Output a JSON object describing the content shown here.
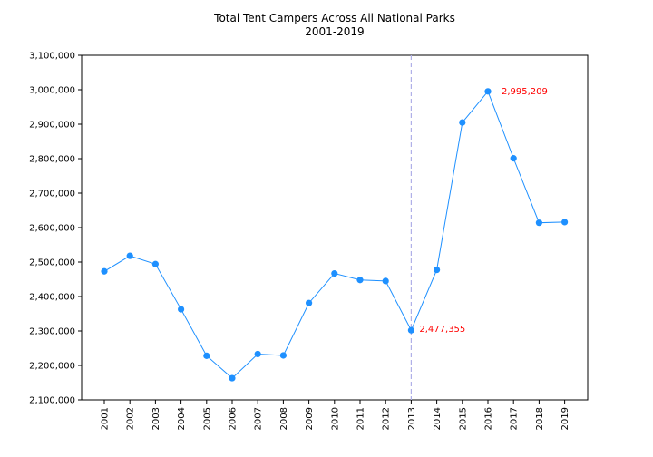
{
  "chart_data": {
    "type": "line",
    "title": "Total Tent Campers Across All National Parks",
    "subtitle": "2001-2019",
    "xlabel": "",
    "ylabel": "",
    "x": [
      "2001",
      "2002",
      "2003",
      "2004",
      "2005",
      "2006",
      "2007",
      "2008",
      "2009",
      "2010",
      "2011",
      "2012",
      "2013",
      "2014",
      "2015",
      "2016",
      "2017",
      "2018",
      "2019"
    ],
    "series": [
      {
        "values": [
          2473000,
          2518000,
          2494000,
          2363000,
          2228000,
          2163000,
          2233000,
          2229000,
          2381000,
          2467000,
          2448000,
          2445000,
          2302000,
          2477355,
          2905000,
          2995209,
          2801000,
          2614000,
          2616000
        ],
        "color": "#1e90ff"
      }
    ],
    "ylim": [
      2100000,
      3100000
    ],
    "yticks": [
      2100000,
      2200000,
      2300000,
      2400000,
      2500000,
      2600000,
      2700000,
      2800000,
      2900000,
      3000000,
      3100000
    ],
    "ytick_labels": [
      "2,100,000",
      "2,200,000",
      "2,300,000",
      "2,400,000",
      "2,500,000",
      "2,600,000",
      "2,700,000",
      "2,800,000",
      "2,900,000",
      "3,000,000",
      "3,100,000"
    ],
    "grid": false,
    "legend": "none",
    "vline": {
      "x": "2013",
      "color": "#b0b0e8",
      "style": "dashed"
    },
    "annotations": [
      {
        "text": "2,477,355",
        "near_x": "2013",
        "color": "#ff0000"
      },
      {
        "text": "2,995,209",
        "near_x": "2016",
        "color": "#ff0000"
      }
    ]
  }
}
